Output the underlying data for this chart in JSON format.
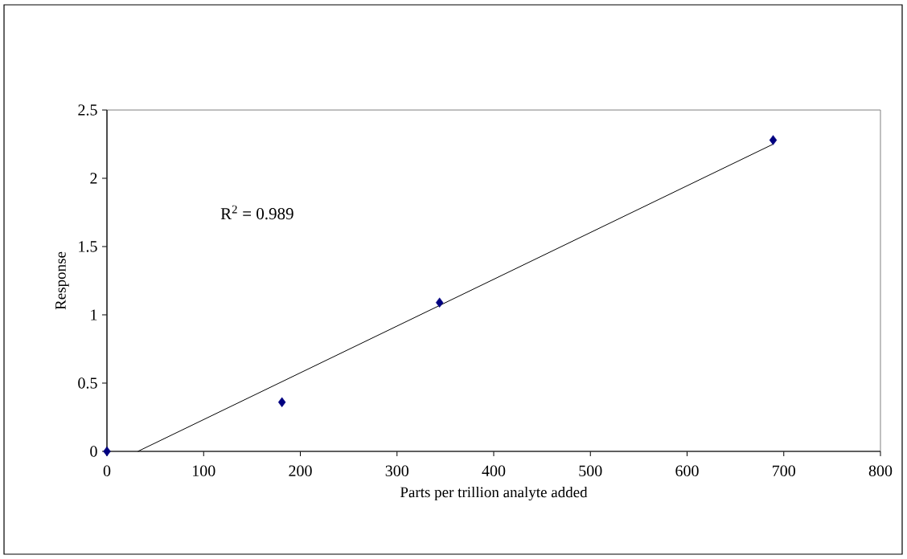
{
  "chart_data": {
    "type": "scatter",
    "xlabel": "Parts per trillion analyte added",
    "ylabel": "Response",
    "annotations": [
      "R$^{2}$ = 0.989"
    ],
    "series": [
      {
        "color": "#000080",
        "x": [
          0,
          181,
          344,
          689
        ],
        "values": [
          0,
          0.36,
          1.09,
          2.28
        ]
      },
      {
        "type": "line",
        "color": "#000000",
        "marker": "none",
        "x": [
          32,
          689
        ],
        "values": [
          0,
          2.25
        ]
      }
    ],
    "marker": "diamond",
    "xlim": [
      0,
      800
    ],
    "xticks": [
      0,
      100,
      200,
      300,
      400,
      500,
      600,
      700,
      800
    ],
    "ylim": [
      0,
      2.5
    ],
    "yticks": [
      0,
      0.5,
      1,
      1.5,
      2,
      2.5
    ],
    "grid": false
  }
}
